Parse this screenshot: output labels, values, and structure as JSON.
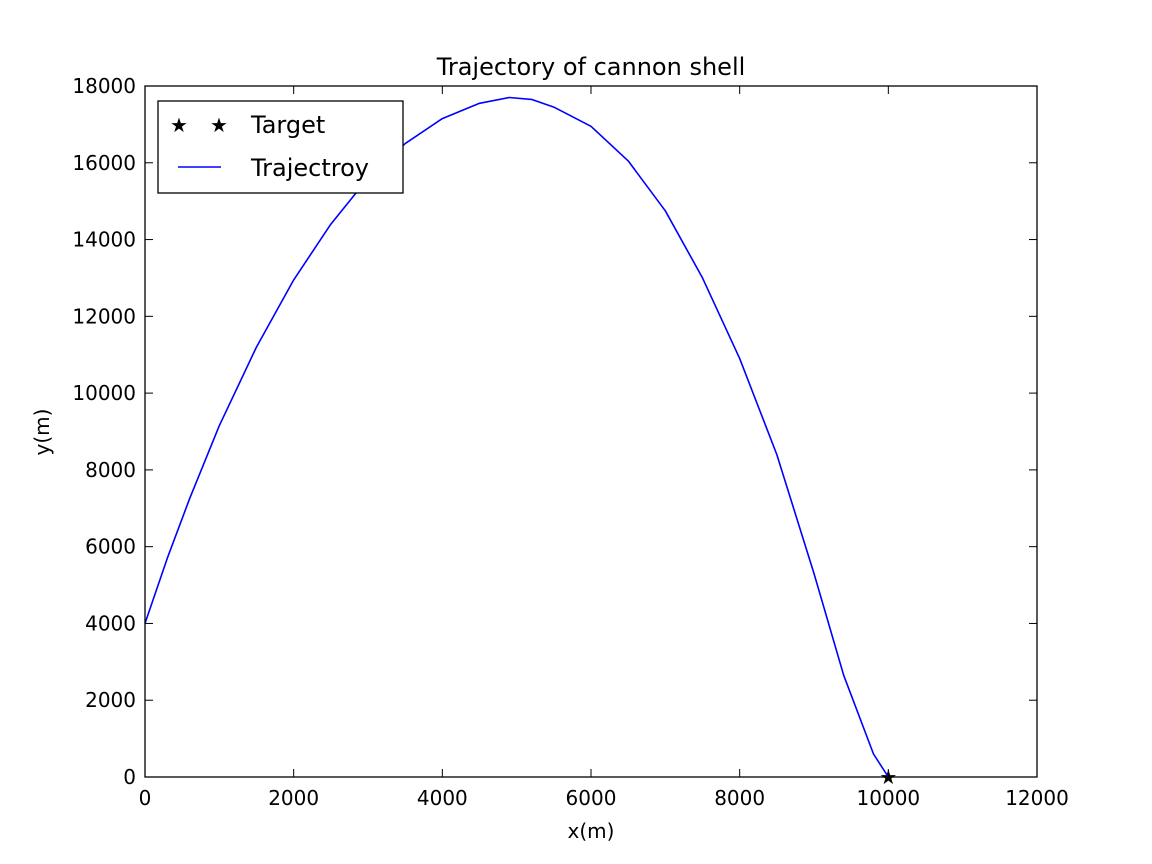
{
  "chart_data": {
    "type": "line",
    "title": "Trajectory of cannon shell",
    "xlabel": "x(m)",
    "ylabel": "y(m)",
    "xlim": [
      0,
      12000
    ],
    "ylim": [
      0,
      18000
    ],
    "xticks": [
      0,
      2000,
      4000,
      6000,
      8000,
      10000,
      12000
    ],
    "yticks": [
      0,
      2000,
      4000,
      6000,
      8000,
      10000,
      12000,
      14000,
      16000,
      18000
    ],
    "xtick_labels": [
      "0",
      "2000",
      "4000",
      "6000",
      "8000",
      "10000",
      "12000"
    ],
    "ytick_labels": [
      "0",
      "2000",
      "4000",
      "6000",
      "8000",
      "10000",
      "12000",
      "14000",
      "16000",
      "18000"
    ],
    "grid": false,
    "legend_position": "upper-left",
    "series": [
      {
        "name": "Target",
        "kind": "marker",
        "marker": "star",
        "color": "#000000",
        "x": [
          10000
        ],
        "y": [
          0
        ]
      },
      {
        "name": "Trajectroy",
        "kind": "line",
        "color": "#0000ff",
        "x": [
          0,
          300,
          600,
          1000,
          1500,
          2000,
          2500,
          3000,
          3500,
          4000,
          4500,
          4900,
          5200,
          5500,
          6000,
          6500,
          7000,
          7500,
          8000,
          8500,
          9000,
          9400,
          9800,
          10000
        ],
        "y": [
          4000,
          5700,
          7250,
          9150,
          11200,
          12950,
          14400,
          15600,
          16500,
          17150,
          17550,
          17700,
          17650,
          17450,
          16950,
          16050,
          14750,
          13000,
          10900,
          8400,
          5300,
          2650,
          600,
          0
        ]
      }
    ]
  }
}
